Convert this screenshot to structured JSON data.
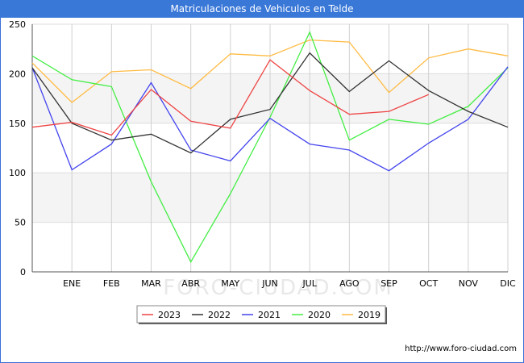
{
  "title": "Matriculaciones de Vehiculos en Telde",
  "footer_url": "http://www.foro-ciudad.com",
  "watermark": "FORO-CIUDAD.COM",
  "chart_data": {
    "type": "line",
    "categories": [
      "",
      "ENE",
      "FEB",
      "MAR",
      "ABR",
      "MAY",
      "JUN",
      "JUL",
      "AGO",
      "SEP",
      "OCT",
      "NOV",
      "DIC"
    ],
    "yticks": [
      0,
      50,
      100,
      150,
      200,
      250
    ],
    "ylim": [
      0,
      250
    ],
    "grid": true,
    "legend_position": "bottom",
    "series": [
      {
        "name": "2023",
        "color": "#ee4444",
        "values": [
          146,
          151,
          138,
          184,
          152,
          145,
          214,
          183,
          159,
          162,
          179,
          null,
          null
        ]
      },
      {
        "name": "2022",
        "color": "#333333",
        "values": [
          206,
          150,
          133,
          139,
          120,
          154,
          164,
          221,
          182,
          213,
          183,
          162,
          146
        ]
      },
      {
        "name": "2021",
        "color": "#4444ee",
        "values": [
          206,
          103,
          129,
          191,
          123,
          112,
          155,
          129,
          123,
          102,
          130,
          154,
          207
        ]
      },
      {
        "name": "2020",
        "color": "#44ee44",
        "values": [
          218,
          194,
          187,
          91,
          10,
          79,
          156,
          242,
          133,
          154,
          149,
          167,
          206
        ]
      },
      {
        "name": "2019",
        "color": "#ffbb44",
        "values": [
          211,
          171,
          202,
          204,
          185,
          220,
          218,
          234,
          232,
          181,
          216,
          225,
          218
        ]
      }
    ]
  }
}
